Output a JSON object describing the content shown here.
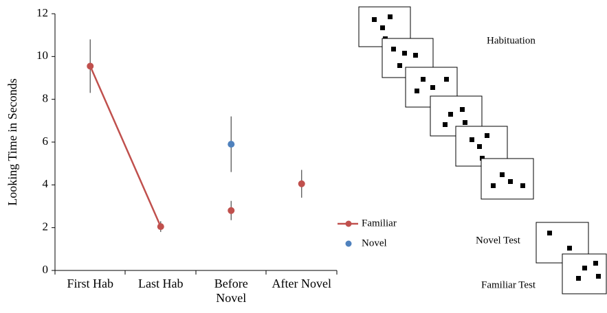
{
  "chart_data": {
    "type": "scatter",
    "y_label": "Looking Time in Seconds",
    "categories": [
      "First Hab",
      "Last Hab",
      "Before Novel",
      "After Novel"
    ],
    "series": [
      {
        "name": "Familiar",
        "color": "#c0504d",
        "values": [
          9.55,
          2.05,
          2.8,
          4.05
        ],
        "errors": [
          1.25,
          0.25,
          0.45,
          0.65
        ],
        "connect": [
          0,
          1
        ]
      },
      {
        "name": "Novel",
        "color": "#4f81bd",
        "values": [
          null,
          null,
          5.9,
          null
        ],
        "errors": [
          null,
          null,
          1.3,
          null
        ]
      }
    ],
    "ylim": [
      0,
      12
    ],
    "yticks": [
      0,
      2,
      4,
      6,
      8,
      10,
      12
    ],
    "legend": "right"
  },
  "diagram": {
    "habituation": "Habituation",
    "novel_test": "Novel Test",
    "familiar_test": "Familiar Test"
  }
}
